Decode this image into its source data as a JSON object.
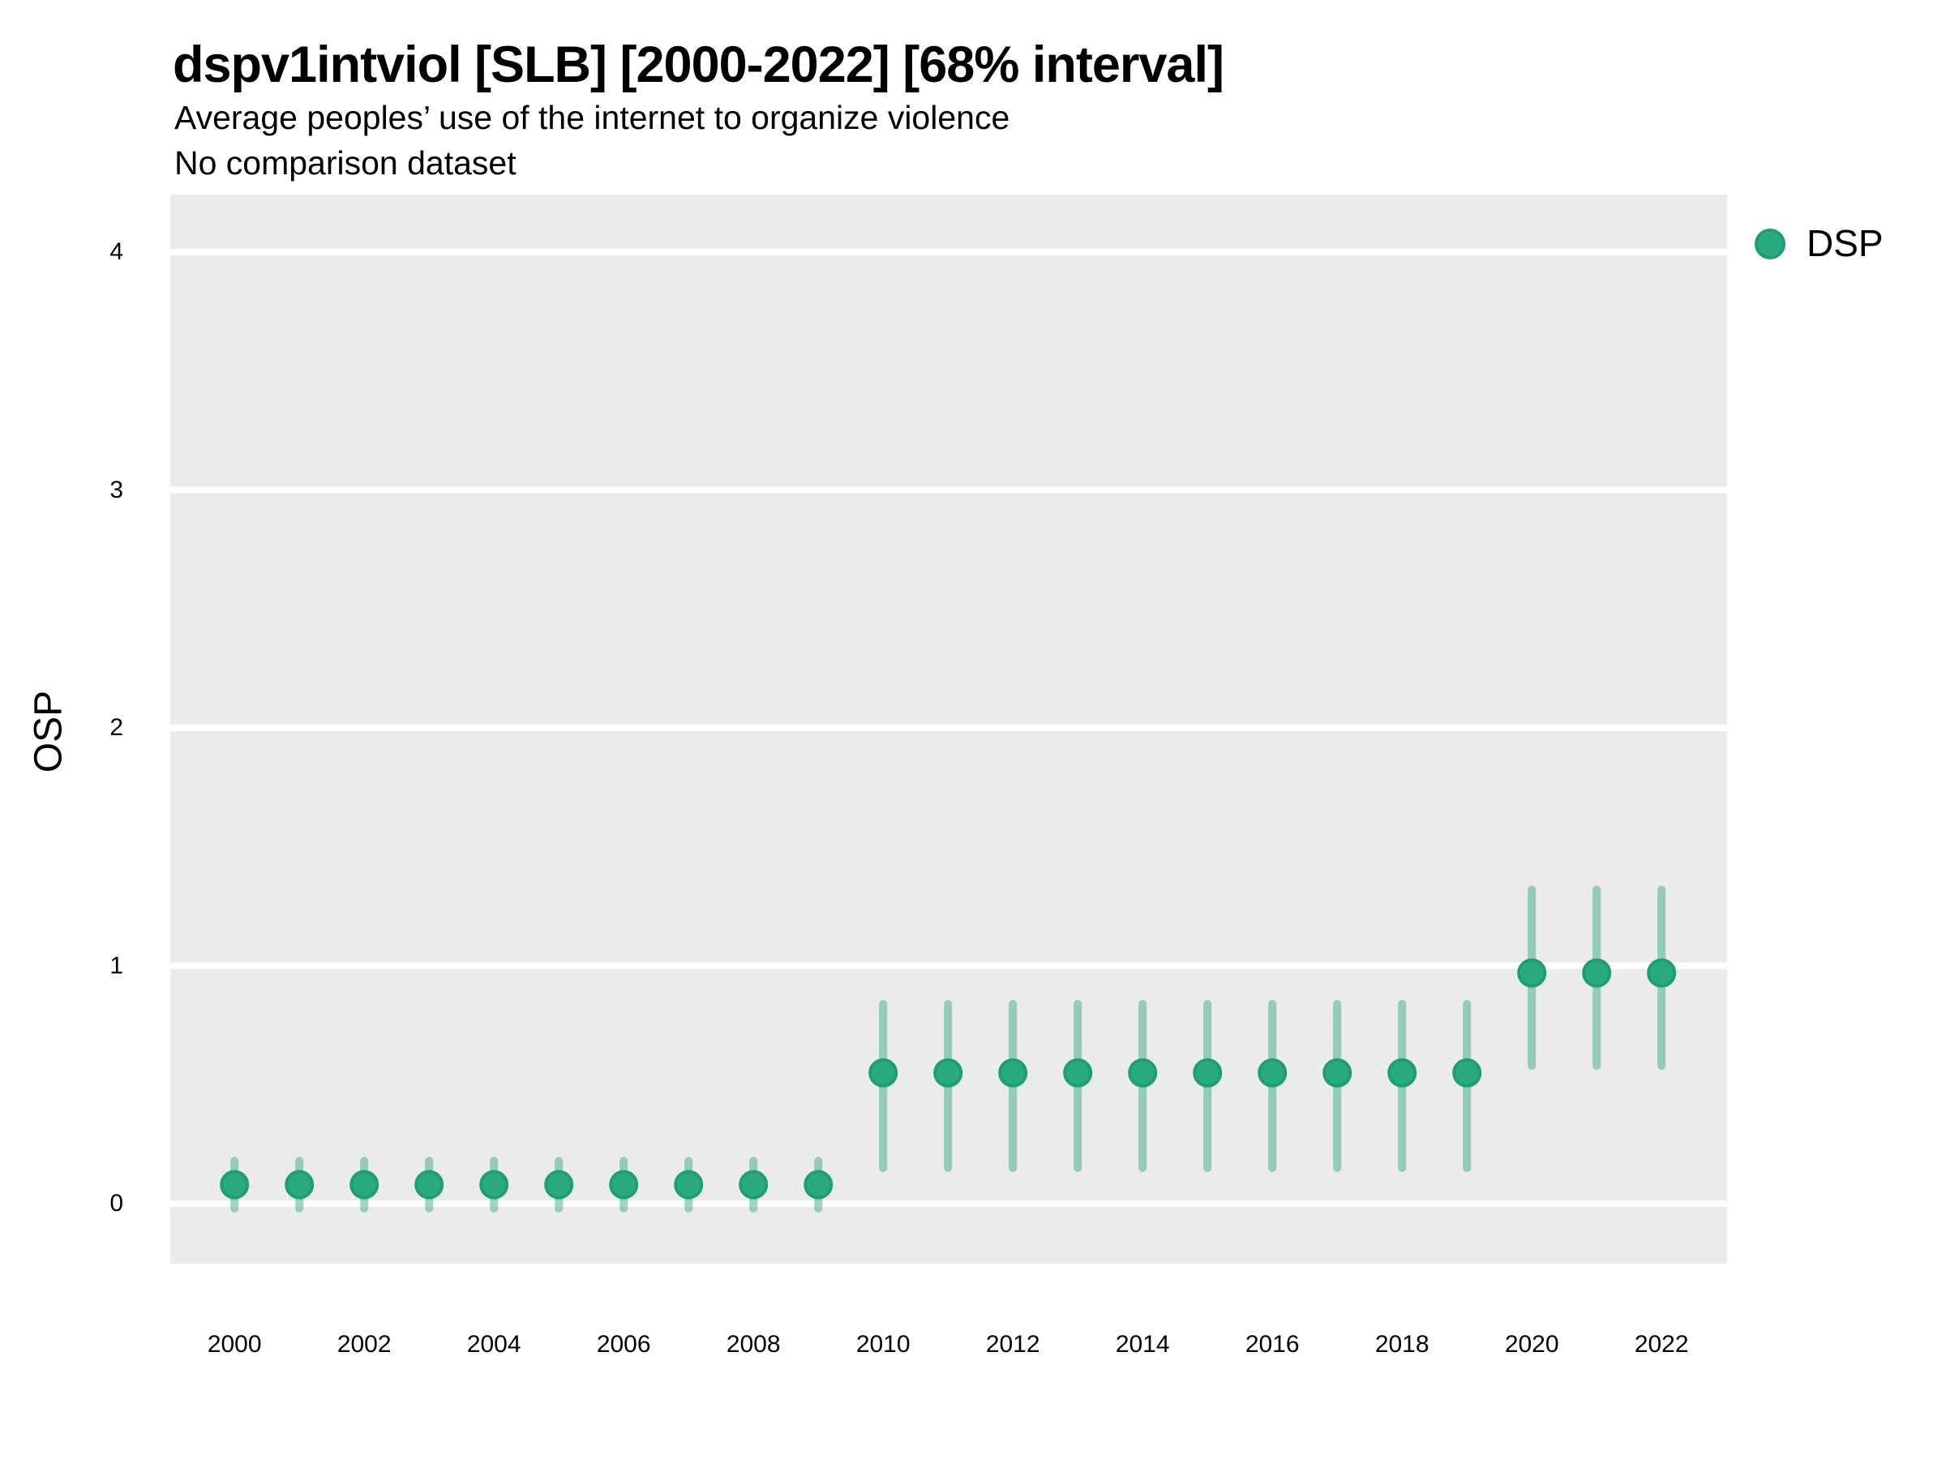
{
  "chart_data": {
    "type": "pointrange",
    "title": "dspv1intviol [SLB] [2000-2022] [68% interval]",
    "subtitle": "Average peoples’ use of the internet to organize violence",
    "note": "No comparison dataset",
    "xlabel": "",
    "ylabel": "OSP",
    "legend": {
      "label": "DSP",
      "position": "right"
    },
    "x_ticks": [
      2000,
      2002,
      2004,
      2006,
      2008,
      2010,
      2012,
      2014,
      2016,
      2018,
      2020,
      2022
    ],
    "y_ticks": [
      0,
      1,
      2,
      3,
      4
    ],
    "xlim": [
      1999.01,
      2023.01
    ],
    "ylim": [
      -0.252,
      4.242
    ],
    "grid": "horizontal-major-only",
    "interval_level": "68%",
    "series": [
      {
        "name": "DSP",
        "points": [
          {
            "year": 2000,
            "est": 0.08,
            "lo": -0.02,
            "hi": 0.18
          },
          {
            "year": 2001,
            "est": 0.08,
            "lo": -0.02,
            "hi": 0.18
          },
          {
            "year": 2002,
            "est": 0.08,
            "lo": -0.02,
            "hi": 0.18
          },
          {
            "year": 2003,
            "est": 0.08,
            "lo": -0.02,
            "hi": 0.18
          },
          {
            "year": 2004,
            "est": 0.08,
            "lo": -0.02,
            "hi": 0.18
          },
          {
            "year": 2005,
            "est": 0.08,
            "lo": -0.02,
            "hi": 0.18
          },
          {
            "year": 2006,
            "est": 0.08,
            "lo": -0.02,
            "hi": 0.18
          },
          {
            "year": 2007,
            "est": 0.08,
            "lo": -0.02,
            "hi": 0.18
          },
          {
            "year": 2008,
            "est": 0.08,
            "lo": -0.02,
            "hi": 0.18
          },
          {
            "year": 2009,
            "est": 0.08,
            "lo": -0.02,
            "hi": 0.18
          },
          {
            "year": 2010,
            "est": 0.55,
            "lo": 0.15,
            "hi": 0.84
          },
          {
            "year": 2011,
            "est": 0.55,
            "lo": 0.15,
            "hi": 0.84
          },
          {
            "year": 2012,
            "est": 0.55,
            "lo": 0.15,
            "hi": 0.84
          },
          {
            "year": 2013,
            "est": 0.55,
            "lo": 0.15,
            "hi": 0.84
          },
          {
            "year": 2014,
            "est": 0.55,
            "lo": 0.15,
            "hi": 0.84
          },
          {
            "year": 2015,
            "est": 0.55,
            "lo": 0.15,
            "hi": 0.84
          },
          {
            "year": 2016,
            "est": 0.55,
            "lo": 0.15,
            "hi": 0.84
          },
          {
            "year": 2017,
            "est": 0.55,
            "lo": 0.15,
            "hi": 0.84
          },
          {
            "year": 2018,
            "est": 0.55,
            "lo": 0.15,
            "hi": 0.84
          },
          {
            "year": 2019,
            "est": 0.55,
            "lo": 0.15,
            "hi": 0.84
          },
          {
            "year": 2020,
            "est": 0.97,
            "lo": 0.58,
            "hi": 1.32
          },
          {
            "year": 2021,
            "est": 0.97,
            "lo": 0.58,
            "hi": 1.32
          },
          {
            "year": 2022,
            "est": 0.97,
            "lo": 0.58,
            "hi": 1.32
          }
        ]
      }
    ],
    "colors": {
      "point_fill": "#2aab7f",
      "point_stroke": "#1f9e72",
      "interval": "rgba(42,167,118,0.45)",
      "panel_background": "#ebebeb",
      "gridline": "#ffffff",
      "text": "#000000"
    }
  }
}
